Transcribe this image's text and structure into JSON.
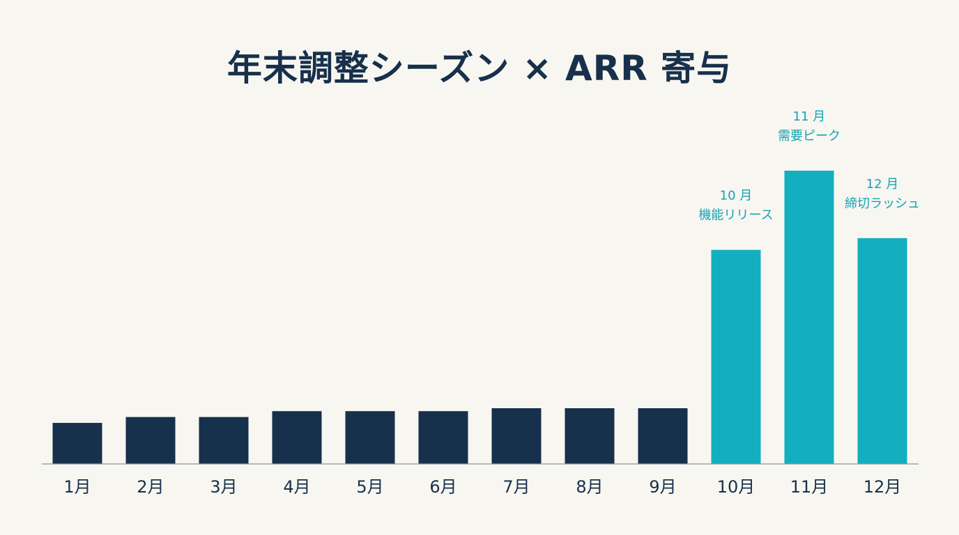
{
  "colors": {
    "background": "#f7f6f0",
    "base_bar": "#17304b",
    "highlight_bar": "#13afc0",
    "axis": "#8b95a3",
    "annotation_text": "#13a3b4"
  },
  "chart_data": {
    "type": "bar",
    "title": "年末調整シーズン × ARR 寄与",
    "xlabel": "",
    "ylabel": "",
    "categories": [
      "1月",
      "2月",
      "3月",
      "4月",
      "5月",
      "6月",
      "7月",
      "8月",
      "9月",
      "10月",
      "11月",
      "12月"
    ],
    "values": [
      14,
      16,
      16,
      18,
      18,
      18,
      19,
      19,
      19,
      73,
      100,
      77
    ],
    "ylim": [
      0,
      100
    ],
    "grid": false,
    "legend": "none",
    "highlighted": [
      "10月",
      "11月",
      "12月"
    ],
    "annotations": [
      {
        "category": "10月",
        "lines": [
          "10 月",
          "機能リリース"
        ]
      },
      {
        "category": "11月",
        "lines": [
          "11 月",
          "需要ピーク"
        ]
      },
      {
        "category": "12月",
        "lines": [
          "12 月",
          "締切ラッシュ"
        ]
      }
    ]
  }
}
